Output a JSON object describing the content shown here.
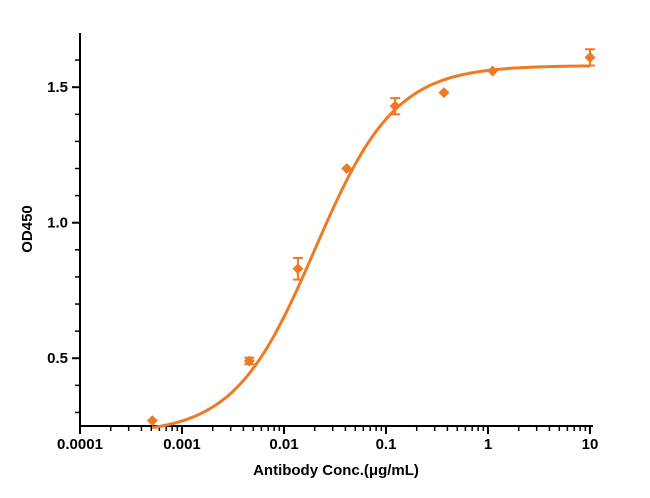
{
  "chart_data": {
    "type": "scatter",
    "x_scale": "log",
    "xlabel": "Antibody Conc.(μg/mL)",
    "ylabel": "OD450",
    "xlim": [
      0.0001,
      10
    ],
    "ylim": [
      0.25,
      1.7
    ],
    "x_ticks": [
      {
        "value": 0.0001,
        "label": "0.0001"
      },
      {
        "value": 0.001,
        "label": "0.001"
      },
      {
        "value": 0.01,
        "label": "0.01"
      },
      {
        "value": 0.1,
        "label": "0.1"
      },
      {
        "value": 1,
        "label": "1"
      },
      {
        "value": 10,
        "label": "10"
      }
    ],
    "y_ticks": [
      {
        "value": 0.5,
        "label": "0.5"
      },
      {
        "value": 1.0,
        "label": "1.0"
      },
      {
        "value": 1.5,
        "label": "1.5"
      }
    ],
    "grid": false,
    "color": "#f07a22",
    "points": [
      {
        "x": 0.000512,
        "y": 0.27,
        "err": 0
      },
      {
        "x": 0.00457,
        "y": 0.49,
        "err": 0.012
      },
      {
        "x": 0.0137,
        "y": 0.83,
        "err": 0.04
      },
      {
        "x": 0.0412,
        "y": 1.2,
        "err": 0
      },
      {
        "x": 0.123,
        "y": 1.43,
        "err": 0.03
      },
      {
        "x": 0.37,
        "y": 1.48,
        "err": 0
      },
      {
        "x": 1.11,
        "y": 1.56,
        "err": 0
      },
      {
        "x": 10,
        "y": 1.61,
        "err": 0.03
      }
    ],
    "fit": {
      "model": "4PL",
      "bottom": 0.22,
      "top": 1.58,
      "ec50": 0.02,
      "hill": 1.1
    }
  }
}
